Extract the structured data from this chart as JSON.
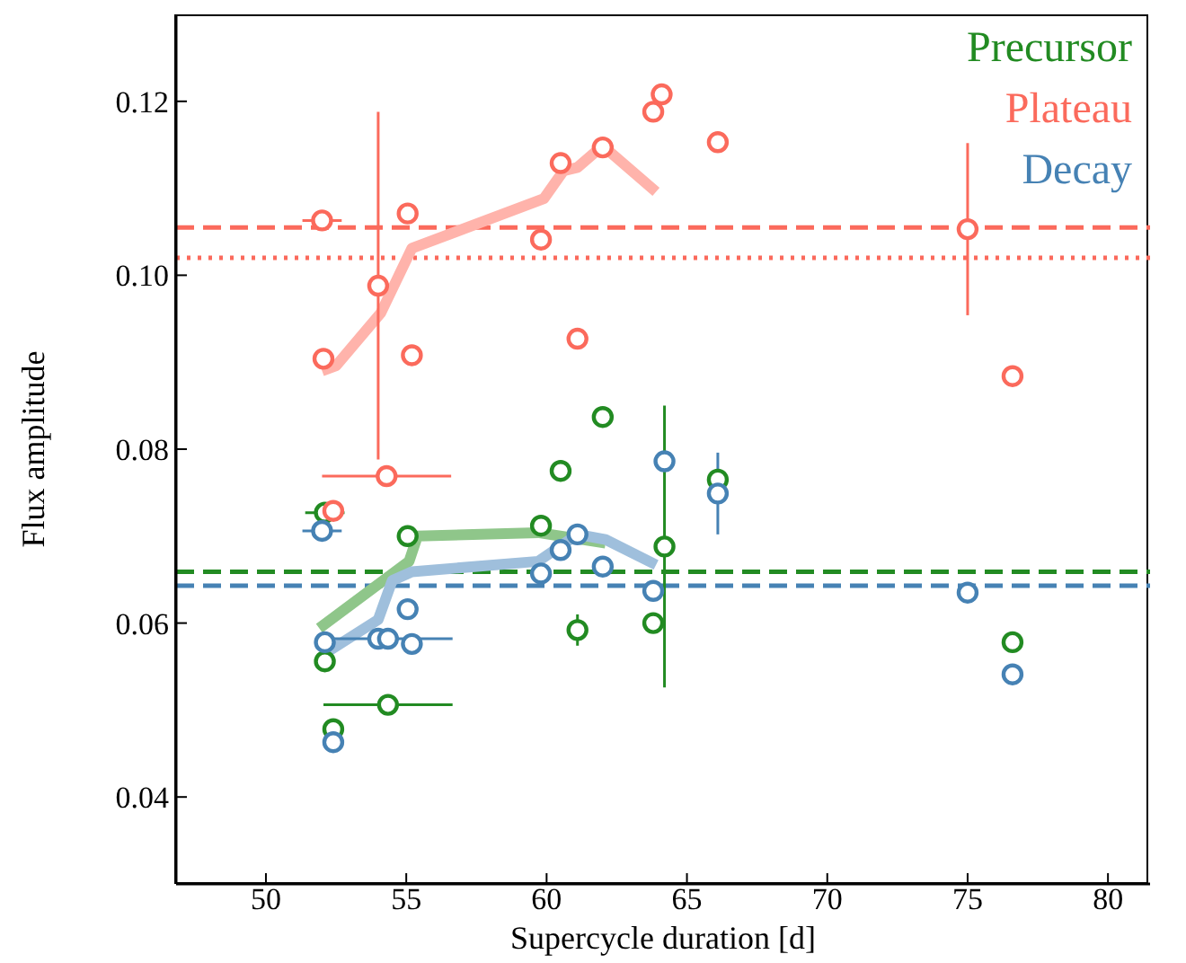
{
  "chart_data": {
    "type": "scatter",
    "xlabel": "Supercycle duration [d]",
    "ylabel": "Flux amplitude",
    "xlim": [
      46.8,
      81.5
    ],
    "xticks": [
      50,
      55,
      60,
      65,
      70,
      75,
      80
    ],
    "ylim": [
      0.03,
      0.13
    ],
    "yticks": [
      {
        "value": 0.04,
        "label": "0.04"
      },
      {
        "value": 0.06,
        "label": "0.06"
      },
      {
        "value": 0.08,
        "label": "0.08"
      },
      {
        "value": 0.1,
        "label": "0.10"
      },
      {
        "value": 0.12,
        "label": "0.12"
      }
    ],
    "marker": "circle",
    "legend": "top right",
    "series": [
      {
        "name": "Precursor",
        "color": "#228b22",
        "x": [
          52.1,
          52.1,
          52.4,
          54.35,
          55.05,
          59.8,
          60.5,
          61.1,
          62.0,
          63.8,
          64.2,
          66.1,
          76.6
        ],
        "values": [
          0.0727,
          0.0556,
          0.0478,
          0.0506,
          0.07,
          0.0712,
          0.0775,
          0.0592,
          0.0837,
          0.06,
          0.0688,
          0.0765,
          0.0578
        ],
        "errors": [
          null,
          null,
          null,
          null,
          null,
          null,
          0.0012,
          0.0018,
          null,
          null,
          0.0162,
          null,
          null
        ],
        "xerrors": [
          0.7,
          null,
          null,
          2.3,
          null,
          null,
          null,
          null,
          null,
          null,
          null,
          null,
          null
        ]
      },
      {
        "name": "Plateau",
        "color": "#fb6a5c",
        "x": [
          52.0,
          52.05,
          52.4,
          54.0,
          54.3,
          55.05,
          55.2,
          59.8,
          60.5,
          61.1,
          62.0,
          63.8,
          64.1,
          66.1,
          75.0,
          76.6
        ],
        "values": [
          0.1063,
          0.0904,
          0.0729,
          0.0988,
          0.0769,
          0.1071,
          0.0908,
          0.1041,
          0.1129,
          0.0927,
          0.1147,
          0.1188,
          0.1208,
          0.1153,
          0.1053,
          0.0884
        ],
        "errors": [
          null,
          null,
          null,
          0.02,
          null,
          null,
          null,
          null,
          null,
          null,
          null,
          null,
          null,
          null,
          0.0099,
          null
        ],
        "xerrors": [
          0.7,
          null,
          null,
          null,
          2.3,
          null,
          null,
          null,
          null,
          null,
          null,
          null,
          null,
          null,
          null,
          null
        ]
      },
      {
        "name": "Decay",
        "color": "#4682b4",
        "x": [
          52.0,
          52.1,
          52.4,
          54.0,
          54.35,
          55.05,
          55.2,
          59.8,
          60.5,
          61.1,
          62.0,
          63.8,
          64.2,
          66.1,
          75.0,
          76.6
        ],
        "values": [
          0.0706,
          0.0578,
          0.0463,
          0.0582,
          0.0582,
          0.0616,
          0.0576,
          0.0657,
          0.0684,
          0.0702,
          0.0665,
          0.0637,
          0.0786,
          0.0749,
          0.0635,
          0.0541
        ],
        "errors": [
          null,
          null,
          null,
          null,
          null,
          null,
          null,
          null,
          null,
          null,
          null,
          null,
          null,
          0.0047,
          null,
          null
        ],
        "xerrors": [
          0.7,
          null,
          null,
          null,
          2.3,
          null,
          null,
          null,
          null,
          null,
          null,
          null,
          null,
          null,
          null,
          null
        ]
      },
      {
        "type": "line",
        "marker": "none",
        "color": "#8fc68a",
        "x": [
          51.9,
          55.1,
          55.4,
          59.7,
          62.1
        ],
        "values": [
          0.0594,
          0.0671,
          0.07,
          0.0704,
          0.0692
        ]
      },
      {
        "type": "line",
        "marker": "none",
        "color": "#ffb3ab",
        "x": [
          52.0,
          52.5,
          54.1,
          55.2,
          59.9,
          60.6,
          61.1,
          62.0,
          63.9
        ],
        "values": [
          0.089,
          0.0896,
          0.0957,
          0.1031,
          0.1088,
          0.112,
          0.1124,
          0.1149,
          0.1096
        ]
      },
      {
        "type": "line",
        "marker": "none",
        "color": "#9fbfdc",
        "x": [
          52.2,
          54.0,
          54.5,
          55.2,
          59.7,
          61.1,
          62.1,
          63.9
        ],
        "values": [
          0.0567,
          0.0604,
          0.0649,
          0.0659,
          0.0671,
          0.0702,
          0.0696,
          0.0667
        ]
      }
    ],
    "ref_lines": [
      {
        "axis": "y",
        "value": 0.1055,
        "color": "#fb6a5c",
        "line_style": "dashed"
      },
      {
        "axis": "y",
        "value": 0.102,
        "color": "#fb6a5c",
        "line_style": "dotted"
      },
      {
        "axis": "y",
        "value": 0.0659,
        "color": "#228b22",
        "line_style": "dashed"
      },
      {
        "axis": "y",
        "value": 0.0643,
        "color": "#4682b4",
        "line_style": "dashed"
      }
    ]
  }
}
